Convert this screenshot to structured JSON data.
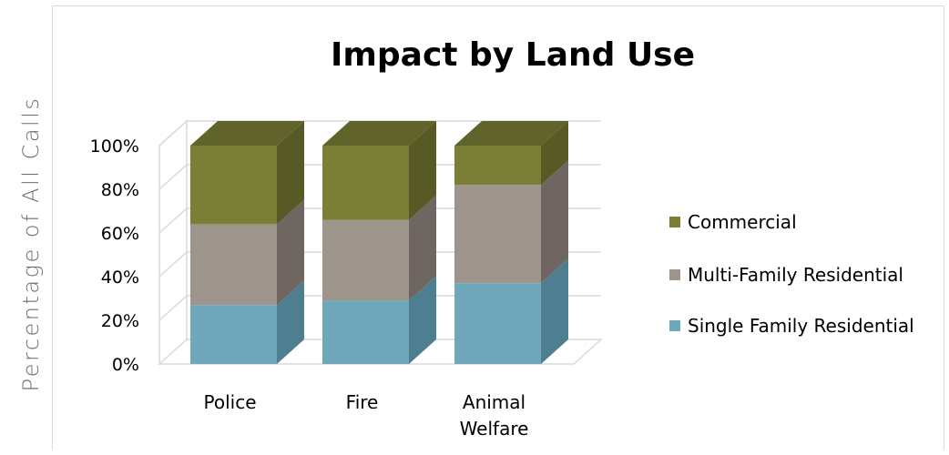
{
  "chart_data": {
    "type": "bar",
    "stacked": true,
    "percent_stacked": true,
    "three_d": true,
    "title": "Impact by Land Use",
    "ylabel": "Percentage of All Calls",
    "xlabel": "",
    "categories": [
      "Police",
      "Fire",
      "Animal Welfare"
    ],
    "category_lines": [
      [
        "Police"
      ],
      [
        "Fire"
      ],
      [
        "Animal",
        "Welfare"
      ]
    ],
    "series": [
      {
        "name": "Single Family Residential",
        "values": [
          27,
          29,
          37
        ],
        "color": "#6fa8bb",
        "side_color": "#4e7f91",
        "top_color": "#86bccb"
      },
      {
        "name": "Multi-Family Residential",
        "values": [
          37,
          37,
          45
        ],
        "color": "#9d948b",
        "side_color": "#6f6661",
        "top_color": "#b3aba3"
      },
      {
        "name": "Commercial",
        "values": [
          36,
          34,
          18
        ],
        "color": "#7b7f35",
        "side_color": "#575a25",
        "top_color": "#60632a"
      }
    ],
    "ylim": [
      0,
      100
    ],
    "yticks": [
      "0%",
      "20%",
      "40%",
      "60%",
      "80%",
      "100%"
    ],
    "grid": true,
    "legend_position": "right"
  }
}
